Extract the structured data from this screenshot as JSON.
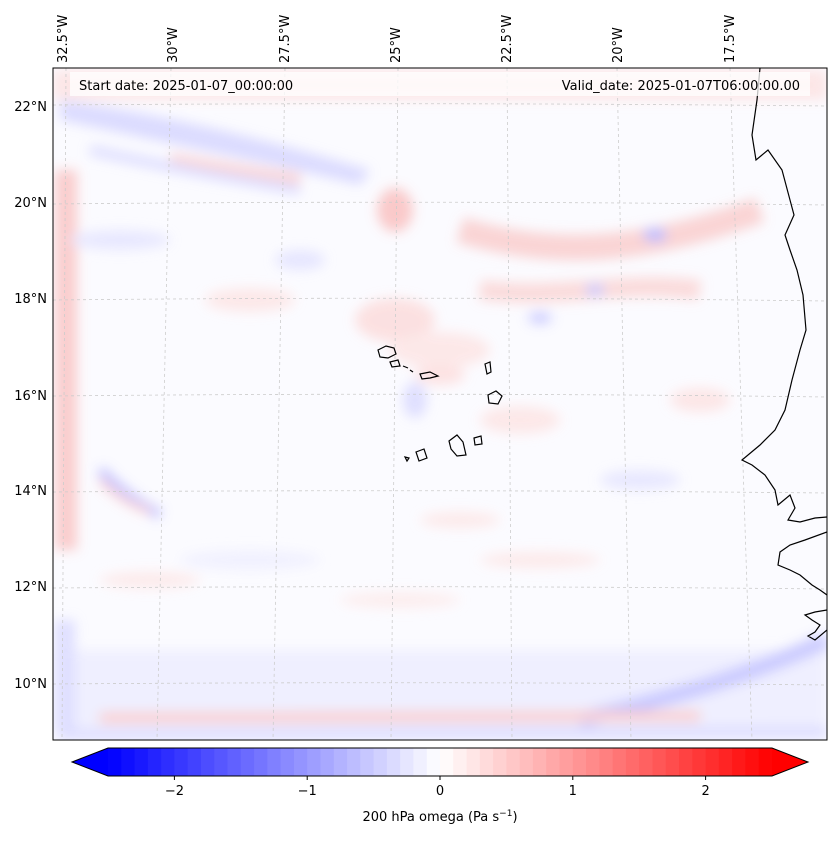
{
  "map": {
    "start_date": "Start date: 2025-01-07_00:00:00",
    "valid_date": "Valid_date: 2025-01-07T06:00:00.00",
    "lon_labels": [
      "32.5°W",
      "30°W",
      "27.5°W",
      "25°W",
      "22.5°W",
      "20°W",
      "17.5°W"
    ],
    "lat_labels": [
      "22°N",
      "20°N",
      "18°N",
      "16°N",
      "14°N",
      "12°N",
      "10°N"
    ]
  },
  "colorbar": {
    "label": "200 hPa omega (Pa s",
    "label_sup": "−1",
    "label_end": ")",
    "ticks": [
      "−2",
      "−1",
      "0",
      "1",
      "2"
    ],
    "tick_values": [
      -2,
      -1,
      0,
      1,
      2
    ],
    "range": [
      -2.5,
      2.5
    ],
    "cmap": "bwr",
    "colors": {
      "negative": "#0000ff",
      "zero": "#ffffff",
      "positive": "#ff0000"
    }
  }
}
